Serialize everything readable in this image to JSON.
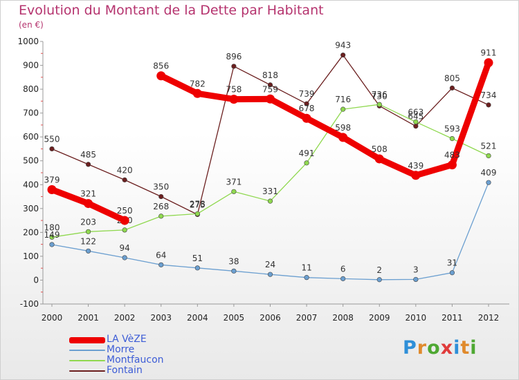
{
  "title": "Evolution du Montant de la Dette par Habitant",
  "subtitle": "(en €)",
  "logo": {
    "text": "Proxiti",
    "letter_colors": [
      "#2f8fd8",
      "#e08a2c",
      "#4ea832",
      "#e03b3b",
      "#2f8fd8",
      "#e08a2c",
      "#4ea832"
    ]
  },
  "chart_data": {
    "type": "line",
    "x": [
      "2000",
      "2001",
      "2002",
      "2003",
      "2004",
      "2005",
      "2006",
      "2007",
      "2008",
      "2009",
      "2010",
      "2011",
      "2012"
    ],
    "ylim": [
      -100,
      1000
    ],
    "yticks": [
      "-100",
      "0",
      "100",
      "200",
      "300",
      "400",
      "500",
      "600",
      "700",
      "800",
      "900",
      "1000"
    ],
    "grid": false,
    "legend_position": "bottom-left",
    "series": [
      {
        "name": "Fontain",
        "color": "#6b1f1f",
        "values": [
          550,
          485,
          420,
          350,
          275,
          896,
          818,
          739,
          943,
          730,
          645,
          805,
          734
        ],
        "labels": [
          "550",
          "485",
          "420",
          "350",
          "275",
          "896",
          "818",
          "739",
          "943",
          "730",
          "645",
          "805",
          "734"
        ]
      },
      {
        "name": "Montfaucon",
        "color": "#8fd84f",
        "values": [
          180,
          203,
          210,
          268,
          278,
          371,
          331,
          491,
          716,
          736,
          663,
          593,
          521
        ],
        "labels": [
          "180",
          "203",
          "210",
          "268",
          "278",
          "371",
          "331",
          "491",
          "716",
          "736",
          "663",
          "593",
          "521"
        ]
      },
      {
        "name": "Morre",
        "color": "#6b9fd0",
        "values": [
          149,
          122,
          94,
          64,
          51,
          38,
          24,
          11,
          6,
          2,
          3,
          31,
          409
        ],
        "labels": [
          "149",
          "122",
          "94",
          "64",
          "51",
          "38",
          "24",
          "11",
          "6",
          "2",
          "3",
          "31",
          "409"
        ]
      },
      {
        "name": "LA VèZE",
        "color": "#ee0000",
        "values": [
          379,
          321,
          250,
          856,
          782,
          758,
          759,
          678,
          598,
          508,
          439,
          483,
          911
        ],
        "labels": [
          "379",
          "321",
          "250",
          "856",
          "782",
          "758",
          "759",
          "678",
          "598",
          "508",
          "439",
          "483",
          "911"
        ],
        "breaks": [
          [
            2,
            3
          ]
        ]
      }
    ]
  },
  "legend": {
    "items": [
      {
        "label": "LA VèZE",
        "color": "#ee0000",
        "thickness": 9
      },
      {
        "label": "Morre",
        "color": "#6b9fd0",
        "thickness": 2
      },
      {
        "label": "Montfaucon",
        "color": "#8fd84f",
        "thickness": 2
      },
      {
        "label": "Fontain",
        "color": "#6b1f1f",
        "thickness": 2
      }
    ]
  }
}
